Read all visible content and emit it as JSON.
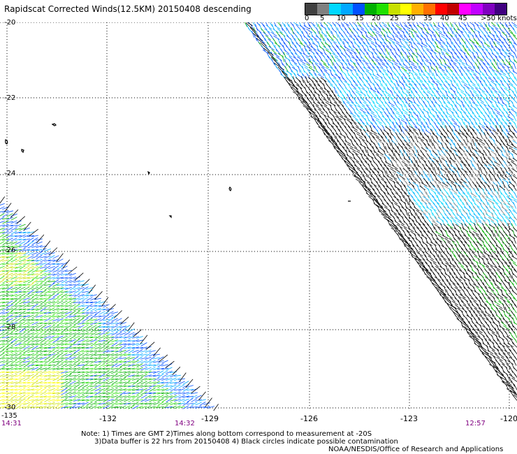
{
  "title": "Rapidscat Corrected Winds(12.5KM) 20150408 descending",
  "scale": {
    "labels": [
      "0",
      "5",
      "10",
      "15",
      "20",
      "25",
      "30",
      "35",
      "40",
      "45",
      ">50 knots"
    ],
    "colors": [
      "#404040",
      "#808080",
      "#00d8ff",
      "#00a8ff",
      "#0050ff",
      "#00b000",
      "#20e000",
      "#c8e000",
      "#ffff00",
      "#ffb000",
      "#ff7000",
      "#ff0000",
      "#c00000",
      "#ff00ff",
      "#c000ff",
      "#8000c0",
      "#400080"
    ]
  },
  "lat_labels": [
    "-20",
    "-22",
    "-24",
    "-26",
    "-28",
    "-30"
  ],
  "lon_labels": [
    "-132",
    "-129",
    "-126",
    "-123",
    "-120"
  ],
  "corner_lon": "-135",
  "times": [
    "14:31",
    "14:32",
    "12:57"
  ],
  "notes": "Note: 1) Times are GMT 2)Times along bottom correspond to measurement at -20S\n      3)Data buffer is 22 hrs from 20150408 4) Black circles indicate possible contamination",
  "credit": "NOAA/NESDIS/Office of Research and Applications"
}
